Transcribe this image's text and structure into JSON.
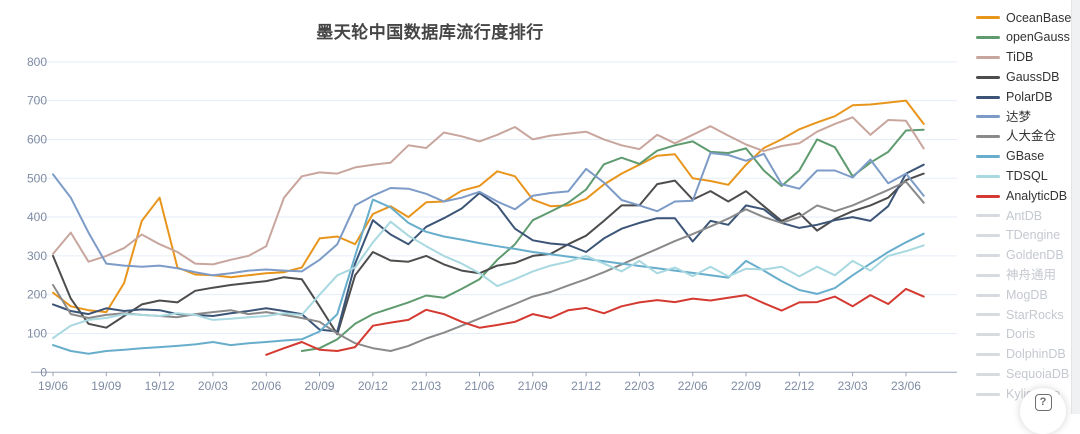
{
  "title": "墨天轮中国数据库流行度排行",
  "style": {
    "title_color": "#454545",
    "grid_color": "#e5edf8",
    "axis_color": "#9aa5b8",
    "tick_label_color": "#7e8ba3",
    "legend_active_text": "#333333",
    "legend_disabled_text": "#c4c8cf",
    "legend_disabled_line": "#d7dade",
    "background": "#ffffff"
  },
  "chart_data": {
    "type": "line",
    "title": "墨天轮中国数据库流行度排行",
    "xlabel": "",
    "ylabel": "",
    "ylim": [
      0,
      800
    ],
    "y_ticks": [
      0,
      100,
      200,
      300,
      400,
      500,
      600,
      700,
      800
    ],
    "grid": true,
    "legend_position": "right",
    "x_tick_step": 3,
    "x": [
      "19/06",
      "19/07",
      "19/08",
      "19/09",
      "19/10",
      "19/11",
      "19/12",
      "20/01",
      "20/02",
      "20/03",
      "20/04",
      "20/05",
      "20/06",
      "20/07",
      "20/08",
      "20/09",
      "20/10",
      "20/11",
      "20/12",
      "21/01",
      "21/02",
      "21/03",
      "21/04",
      "21/05",
      "21/06",
      "21/07",
      "21/08",
      "21/09",
      "21/10",
      "21/11",
      "21/12",
      "22/01",
      "22/02",
      "22/03",
      "22/04",
      "22/05",
      "22/06",
      "22/07",
      "22/08",
      "22/09",
      "22/10",
      "22/11",
      "22/12",
      "23/01",
      "23/02",
      "23/03",
      "23/04",
      "23/05",
      "23/06",
      "23/07"
    ],
    "x_tick_labels": [
      "19/06",
      "19/09",
      "19/12",
      "20/03",
      "20/06",
      "20/09",
      "20/12",
      "21/03",
      "21/06",
      "21/09",
      "21/12",
      "22/03",
      "22/06",
      "22/09",
      "22/12",
      "23/03",
      "23/06"
    ],
    "series": [
      {
        "name": "OceanBase",
        "color": "#e8951c",
        "values": [
          205,
          170,
          160,
          155,
          230,
          390,
          450,
          270,
          252,
          250,
          245,
          250,
          255,
          258,
          270,
          345,
          350,
          330,
          408,
          428,
          400,
          438,
          440,
          468,
          480,
          518,
          505,
          445,
          428,
          430,
          447,
          484,
          512,
          535,
          558,
          562,
          500,
          493,
          483,
          535,
          578,
          600,
          626,
          644,
          660,
          688,
          690,
          695,
          700,
          640
        ]
      },
      {
        "name": "openGauss",
        "color": "#5f9b6f",
        "values": [
          null,
          null,
          null,
          null,
          null,
          null,
          null,
          null,
          null,
          null,
          null,
          null,
          null,
          null,
          55,
          62,
          85,
          125,
          150,
          165,
          180,
          198,
          192,
          215,
          240,
          290,
          330,
          392,
          414,
          437,
          471,
          536,
          553,
          537,
          571,
          585,
          595,
          568,
          565,
          577,
          520,
          480,
          520,
          600,
          580,
          505,
          540,
          568,
          623,
          625
        ]
      },
      {
        "name": "TiDB",
        "color": "#c8a69e",
        "values": [
          305,
          360,
          285,
          300,
          320,
          355,
          330,
          310,
          280,
          278,
          290,
          300,
          325,
          450,
          505,
          515,
          512,
          528,
          535,
          540,
          585,
          578,
          618,
          608,
          595,
          612,
          632,
          600,
          610,
          615,
          620,
          600,
          585,
          575,
          612,
          590,
          612,
          634,
          610,
          587,
          570,
          583,
          590,
          620,
          640,
          657,
          612,
          650,
          648,
          577
        ]
      },
      {
        "name": "GaussDB",
        "color": "#4d4d4d",
        "values": [
          300,
          190,
          125,
          115,
          145,
          175,
          185,
          180,
          210,
          218,
          225,
          230,
          235,
          245,
          240,
          170,
          98,
          250,
          310,
          288,
          285,
          300,
          278,
          262,
          255,
          275,
          282,
          300,
          305,
          330,
          352,
          390,
          430,
          430,
          485,
          494,
          445,
          467,
          440,
          467,
          428,
          390,
          410,
          365,
          395,
          415,
          430,
          450,
          495,
          512
        ]
      },
      {
        "name": "PolarDB",
        "color": "#3c5577",
        "values": [
          175,
          158,
          150,
          165,
          158,
          162,
          160,
          150,
          148,
          145,
          152,
          158,
          165,
          158,
          150,
          110,
          105,
          280,
          392,
          355,
          330,
          375,
          397,
          422,
          462,
          430,
          370,
          340,
          332,
          328,
          310,
          345,
          370,
          385,
          397,
          397,
          337,
          390,
          380,
          430,
          420,
          385,
          372,
          380,
          392,
          400,
          390,
          428,
          512,
          535
        ]
      },
      {
        "name": "达梦",
        "color": "#7d9bc7",
        "values": [
          510,
          450,
          360,
          280,
          275,
          272,
          275,
          268,
          258,
          250,
          255,
          262,
          265,
          262,
          260,
          290,
          330,
          430,
          455,
          475,
          473,
          460,
          440,
          450,
          465,
          440,
          420,
          455,
          462,
          466,
          524,
          489,
          444,
          430,
          415,
          440,
          442,
          565,
          560,
          545,
          563,
          485,
          473,
          520,
          520,
          502,
          548,
          487,
          512,
          455
        ]
      },
      {
        "name": "人大金仓",
        "color": "#8a8a8a",
        "values": [
          225,
          150,
          140,
          148,
          152,
          148,
          145,
          142,
          150,
          155,
          160,
          150,
          155,
          148,
          140,
          130,
          100,
          75,
          62,
          55,
          68,
          87,
          102,
          120,
          139,
          158,
          176,
          195,
          207,
          224,
          240,
          258,
          278,
          298,
          318,
          338,
          356,
          376,
          396,
          420,
          400,
          385,
          400,
          430,
          415,
          430,
          450,
          470,
          491,
          437
        ]
      },
      {
        "name": "GBase",
        "color": "#68aecc",
        "values": [
          70,
          55,
          48,
          55,
          58,
          62,
          65,
          68,
          72,
          78,
          70,
          75,
          78,
          82,
          85,
          105,
          150,
          300,
          445,
          425,
          385,
          362,
          350,
          342,
          333,
          325,
          318,
          310,
          304,
          298,
          292,
          286,
          280,
          274,
          268,
          262,
          256,
          250,
          244,
          287,
          262,
          235,
          212,
          202,
          217,
          250,
          280,
          310,
          335,
          357
        ]
      },
      {
        "name": "TDSQL",
        "color": "#a8d8e0",
        "values": [
          88,
          120,
          135,
          140,
          150,
          148,
          145,
          152,
          148,
          135,
          138,
          142,
          145,
          152,
          148,
          200,
          250,
          270,
          335,
          388,
          352,
          325,
          300,
          280,
          255,
          222,
          240,
          260,
          275,
          285,
          300,
          280,
          260,
          287,
          255,
          270,
          248,
          272,
          247,
          267,
          265,
          272,
          247,
          272,
          250,
          287,
          262,
          300,
          312,
          327
        ]
      },
      {
        "name": "AnalyticDB",
        "color": "#d43a31",
        "values": [
          null,
          null,
          null,
          null,
          null,
          null,
          null,
          null,
          null,
          null,
          null,
          null,
          45,
          62,
          78,
          58,
          55,
          65,
          120,
          128,
          135,
          161,
          150,
          130,
          115,
          122,
          130,
          150,
          140,
          160,
          166,
          152,
          170,
          180,
          186,
          181,
          190,
          185,
          192,
          199,
          178,
          159,
          180,
          181,
          195,
          170,
          199,
          176,
          215,
          195
        ]
      }
    ]
  },
  "legend": {
    "items": [
      {
        "label": "OceanBase",
        "color": "#e8951c",
        "enabled": true
      },
      {
        "label": "openGauss",
        "color": "#5f9b6f",
        "enabled": true
      },
      {
        "label": "TiDB",
        "color": "#c8a69e",
        "enabled": true
      },
      {
        "label": "GaussDB",
        "color": "#4d4d4d",
        "enabled": true
      },
      {
        "label": "PolarDB",
        "color": "#3c5577",
        "enabled": true
      },
      {
        "label": "达梦",
        "color": "#7d9bc7",
        "enabled": true
      },
      {
        "label": "人大金仓",
        "color": "#8a8a8a",
        "enabled": true
      },
      {
        "label": "GBase",
        "color": "#68aecc",
        "enabled": true
      },
      {
        "label": "TDSQL",
        "color": "#a8d8e0",
        "enabled": true
      },
      {
        "label": "AnalyticDB",
        "color": "#d43a31",
        "enabled": true
      },
      {
        "label": "AntDB",
        "color": "#d7dade",
        "enabled": false
      },
      {
        "label": "TDengine",
        "color": "#d7dade",
        "enabled": false
      },
      {
        "label": "GoldenDB",
        "color": "#d7dade",
        "enabled": false
      },
      {
        "label": "神舟通用",
        "color": "#d7dade",
        "enabled": false
      },
      {
        "label": "MogDB",
        "color": "#d7dade",
        "enabled": false
      },
      {
        "label": "StarRocks",
        "color": "#d7dade",
        "enabled": false
      },
      {
        "label": "Doris",
        "color": "#d7dade",
        "enabled": false
      },
      {
        "label": "DolphinDB",
        "color": "#d7dade",
        "enabled": false
      },
      {
        "label": "SequoiaDB",
        "color": "#d7dade",
        "enabled": false
      },
      {
        "label": "Kyligence",
        "color": "#d7dade",
        "enabled": false
      }
    ]
  },
  "fab": {
    "icon": "?"
  }
}
